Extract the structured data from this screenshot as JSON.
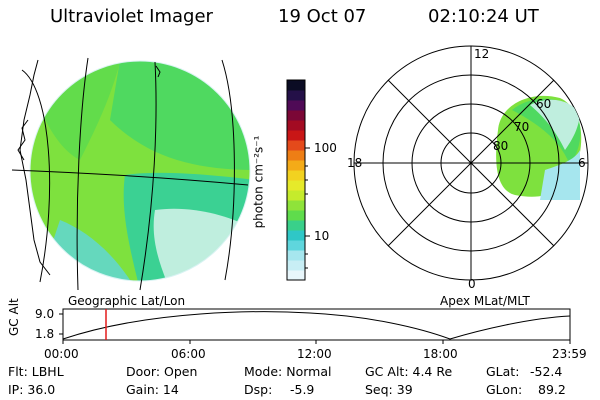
{
  "header": {
    "instrument": "Ultraviolet Imager",
    "date": "19 Oct 07",
    "time": "02:10:24 UT"
  },
  "colorbar": {
    "unit_label": "photon cm⁻²s⁻¹",
    "ticks": [
      "100",
      "10"
    ],
    "colors": [
      "#e8f6fb",
      "#c8eef5",
      "#a6e6ee",
      "#5fd6dd",
      "#2fc7c7",
      "#39d08a",
      "#5fdc4c",
      "#8fe33a",
      "#c5eb2c",
      "#e6ea2a",
      "#f2d220",
      "#f4ab18",
      "#ee7e15",
      "#e44a1b",
      "#c91616",
      "#a30b22",
      "#7b0736",
      "#4f0a56",
      "#241048",
      "#0b0c24"
    ]
  },
  "left_map": {
    "caption": "Geographic Lat/Lon",
    "fill_colors": [
      "#7ee13e",
      "#4fd960",
      "#3bd193",
      "#bfeede"
    ]
  },
  "right_polar": {
    "caption": "Apex MLat/MLT",
    "mlt_labels": [
      "12",
      "18",
      "6",
      "0"
    ],
    "mlat_labels": [
      "60",
      "70",
      "80"
    ]
  },
  "timeline": {
    "axis_label": "GC Alt",
    "y_labels": [
      "9.0",
      "1.8"
    ],
    "x_ticks": [
      "00:00",
      "06:00",
      "12:00",
      "18:00",
      "23:59"
    ],
    "current_time_color": "#e21b1b"
  },
  "info": {
    "flt": "Flt: LBHL",
    "ip": "IP: 36.0",
    "door": "Door: Open",
    "gain": "Gain: 14",
    "mode": "Mode: Normal",
    "dsp": "Dsp:",
    "dsp_value": "-5.9",
    "gc_alt": "GC Alt: 4.4 Re",
    "seq": "Seq: 39",
    "glat": "GLat:",
    "glat_value": "-52.4",
    "glon": "GLon:",
    "glon_value": "89.2"
  }
}
